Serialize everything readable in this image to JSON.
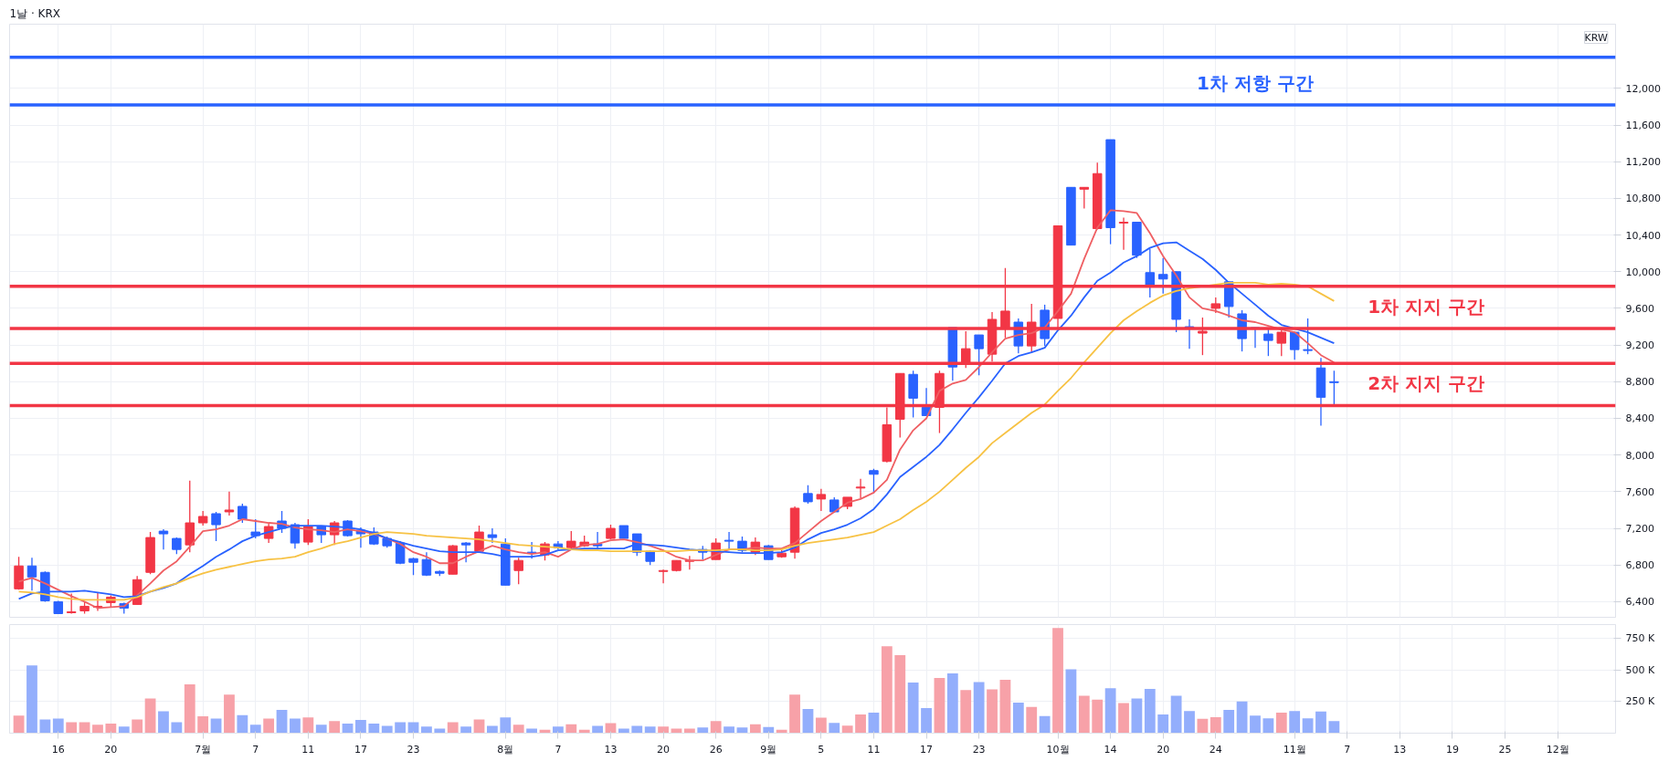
{
  "chart_data": [
    {
      "type": "candlestick",
      "title": "1날 · KRX",
      "annotations": [
        "KRW"
      ],
      "tick_labels": "y",
      "grid": true,
      "categories": [
        null,
        null,
        null,
        "16",
        null,
        null,
        null,
        "20",
        null,
        null,
        null,
        null,
        null,
        null,
        "7월",
        null,
        null,
        null,
        "7",
        null,
        null,
        null,
        "11",
        null,
        null,
        null,
        "17",
        null,
        null,
        null,
        "23",
        null,
        null,
        null,
        null,
        null,
        null,
        "8월",
        null,
        null,
        null,
        "7",
        null,
        null,
        null,
        "13",
        null,
        null,
        null,
        "20",
        null,
        null,
        null,
        "26",
        null,
        null,
        null,
        "9월",
        null,
        null,
        null,
        "5",
        null,
        null,
        null,
        "11",
        null,
        null,
        null,
        "17",
        null,
        null,
        null,
        "23",
        null,
        null,
        null,
        null,
        null,
        "10월",
        null,
        null,
        null,
        "14",
        null,
        null,
        null,
        "20",
        null,
        null,
        null,
        "24",
        null,
        null,
        null,
        null,
        null,
        "11월",
        null,
        null,
        null,
        "7",
        null,
        null,
        null,
        "13",
        null,
        null,
        null,
        "19",
        null,
        null,
        null,
        "25",
        null,
        null,
        null,
        "12월",
        null,
        null,
        null,
        null
      ],
      "ohlc": [
        [
          6540,
          6890,
          6530,
          6790
        ],
        [
          6790,
          6880,
          6520,
          6670
        ],
        [
          6720,
          6730,
          6400,
          6410
        ],
        [
          6400,
          6410,
          6270,
          6270
        ],
        [
          6280,
          6490,
          6270,
          6290
        ],
        [
          6300,
          6400,
          6270,
          6350
        ],
        [
          6340,
          6500,
          6300,
          6350
        ],
        [
          6390,
          6470,
          6340,
          6450
        ],
        [
          6380,
          6390,
          6270,
          6330
        ],
        [
          6370,
          6680,
          6370,
          6640
        ],
        [
          6720,
          7160,
          6700,
          7100
        ],
        [
          7170,
          7190,
          6970,
          7140
        ],
        [
          7090,
          7100,
          6920,
          6970
        ],
        [
          7020,
          7720,
          6940,
          7260
        ],
        [
          7260,
          7390,
          7230,
          7330
        ],
        [
          7360,
          7380,
          7060,
          7240
        ],
        [
          7380,
          7600,
          7340,
          7400
        ],
        [
          7440,
          7470,
          7260,
          7300
        ],
        [
          7160,
          7300,
          7090,
          7120
        ],
        [
          7090,
          7250,
          7040,
          7220
        ],
        [
          7280,
          7390,
          7150,
          7200
        ],
        [
          7240,
          7260,
          6980,
          7040
        ],
        [
          7050,
          7300,
          7020,
          7220
        ],
        [
          7220,
          7230,
          7040,
          7130
        ],
        [
          7130,
          7280,
          7020,
          7260
        ],
        [
          7280,
          7290,
          7110,
          7120
        ],
        [
          7180,
          7210,
          6990,
          7140
        ],
        [
          7160,
          7210,
          7020,
          7030
        ],
        [
          7090,
          7110,
          6990,
          7010
        ],
        [
          7040,
          7060,
          6810,
          6820
        ],
        [
          6870,
          6880,
          6690,
          6830
        ],
        [
          6860,
          6940,
          6680,
          6690
        ],
        [
          6730,
          6740,
          6680,
          6710
        ],
        [
          6700,
          7020,
          6700,
          7010
        ],
        [
          7040,
          7050,
          6830,
          7020
        ],
        [
          6950,
          7230,
          6940,
          7160
        ],
        [
          7130,
          7200,
          7040,
          7100
        ],
        [
          7030,
          7090,
          6580,
          6580
        ],
        [
          6740,
          6880,
          6590,
          6850
        ],
        [
          6940,
          7050,
          6870,
          6930
        ],
        [
          6910,
          7050,
          6850,
          7030
        ],
        [
          7030,
          7060,
          6970,
          6990
        ],
        [
          6990,
          7170,
          6970,
          7060
        ],
        [
          7010,
          7120,
          7000,
          7050
        ],
        [
          7030,
          7160,
          6970,
          7010
        ],
        [
          7090,
          7240,
          7080,
          7200
        ],
        [
          7230,
          7230,
          7090,
          7090
        ],
        [
          7140,
          7140,
          6900,
          6940
        ],
        [
          6950,
          6960,
          6800,
          6840
        ],
        [
          6730,
          6750,
          6600,
          6740
        ],
        [
          6740,
          6850,
          6730,
          6850
        ],
        [
          6840,
          6900,
          6750,
          6850
        ],
        [
          6970,
          7010,
          6860,
          6940
        ],
        [
          6860,
          7090,
          6860,
          7040
        ],
        [
          7070,
          7160,
          6960,
          7060
        ],
        [
          7060,
          7110,
          6940,
          6960
        ],
        [
          6940,
          7100,
          6910,
          7050
        ],
        [
          7010,
          7020,
          6860,
          6860
        ],
        [
          6890,
          6970,
          6880,
          6930
        ],
        [
          6940,
          7440,
          6870,
          7420
        ],
        [
          7580,
          7670,
          7470,
          7490
        ],
        [
          7520,
          7630,
          7390,
          7570
        ],
        [
          7510,
          7540,
          7370,
          7380
        ],
        [
          7440,
          7540,
          7410,
          7540
        ],
        [
          7640,
          7740,
          7530,
          7650
        ],
        [
          7830,
          7850,
          7580,
          7790
        ],
        [
          7930,
          8520,
          7920,
          8330
        ],
        [
          8390,
          8890,
          8190,
          8890
        ],
        [
          8880,
          8920,
          8410,
          8620
        ],
        [
          8520,
          8730,
          8430,
          8430
        ],
        [
          8520,
          8920,
          8240,
          8890
        ],
        [
          9390,
          9390,
          8810,
          8960
        ],
        [
          9010,
          9350,
          8950,
          9160
        ],
        [
          9310,
          9310,
          8870,
          9160
        ],
        [
          9100,
          9560,
          9020,
          9480
        ],
        [
          9380,
          10040,
          9280,
          9570
        ],
        [
          9450,
          9490,
          9110,
          9190
        ],
        [
          9190,
          9650,
          9120,
          9450
        ],
        [
          9580,
          9640,
          9190,
          9270
        ],
        [
          9490,
          10500,
          9380,
          10500
        ],
        [
          10920,
          10920,
          10290,
          10290
        ],
        [
          10900,
          10920,
          10690,
          10920
        ],
        [
          10470,
          11190,
          10460,
          11070
        ],
        [
          11440,
          11440,
          10300,
          10480
        ],
        [
          10530,
          10590,
          10240,
          10540
        ],
        [
          10540,
          10540,
          10150,
          10180
        ],
        [
          9990,
          10250,
          9720,
          9850
        ],
        [
          9970,
          10150,
          9760,
          9920
        ],
        [
          10000,
          10000,
          9340,
          9480
        ],
        [
          9400,
          9480,
          9160,
          9390
        ],
        [
          9330,
          9500,
          9090,
          9350
        ],
        [
          9600,
          9720,
          9550,
          9650
        ],
        [
          9890,
          9890,
          9500,
          9620
        ],
        [
          9540,
          9580,
          9130,
          9270
        ],
        [
          9390,
          9390,
          9170,
          9380
        ],
        [
          9320,
          9390,
          9080,
          9250
        ],
        [
          9220,
          9360,
          9080,
          9340
        ],
        [
          9340,
          9340,
          9040,
          9150
        ],
        [
          9150,
          9490,
          9100,
          9140
        ],
        [
          8950,
          9060,
          8320,
          8630
        ],
        [
          8800,
          8920,
          8540,
          8790
        ],
        null,
        null,
        null,
        null,
        null,
        null,
        null,
        null,
        null,
        null,
        null,
        null,
        null,
        null,
        null,
        null,
        null,
        null,
        null,
        null,
        null
      ],
      "colors": [
        "#f23645",
        "#2962ff",
        "#2962ff",
        "#2962ff",
        "#f23645",
        "#f23645",
        "#f23645",
        "#f23645",
        "#2962ff",
        "#f23645",
        "#f23645",
        "#2962ff",
        "#2962ff",
        "#f23645",
        "#f23645",
        "#2962ff",
        "#f23645",
        "#2962ff",
        "#2962ff",
        "#f23645",
        "#2962ff",
        "#2962ff",
        "#f23645",
        "#2962ff",
        "#f23645",
        "#2962ff",
        "#2962ff",
        "#2962ff",
        "#2962ff",
        "#2962ff",
        "#2962ff",
        "#2962ff",
        "#2962ff",
        "#f23645",
        "#2962ff",
        "#f23645",
        "#2962ff",
        "#2962ff",
        "#f23645",
        "#2962ff",
        "#f23645",
        "#2962ff",
        "#f23645",
        "#f23645",
        "#2962ff",
        "#f23645",
        "#2962ff",
        "#2962ff",
        "#2962ff",
        "#f23645",
        "#f23645",
        "#f23645",
        "#2962ff",
        "#f23645",
        "#2962ff",
        "#2962ff",
        "#f23645",
        "#2962ff",
        "#f23645",
        "#f23645",
        "#2962ff",
        "#f23645",
        "#2962ff",
        "#f23645",
        "#f23645",
        "#2962ff",
        "#f23645",
        "#f23645",
        "#2962ff",
        "#2962ff",
        "#f23645",
        "#2962ff",
        "#f23645",
        "#2962ff",
        "#f23645",
        "#f23645",
        "#2962ff",
        "#f23645",
        "#2962ff",
        "#f23645",
        "#2962ff",
        "#f23645",
        "#f23645",
        "#2962ff",
        "#f23645",
        "#2962ff",
        "#2962ff",
        "#2962ff",
        "#2962ff",
        "#2962ff",
        "#f23645",
        "#f23645",
        "#2962ff",
        "#2962ff",
        "#2962ff",
        "#2962ff",
        "#f23645",
        "#2962ff",
        "#2962ff",
        "#2962ff",
        "#2962ff",
        null,
        null,
        null,
        null,
        null,
        null,
        null,
        null,
        null,
        null,
        null,
        null,
        null,
        null,
        null,
        null,
        null,
        null,
        null,
        null,
        null
      ],
      "series": [
        {
          "type": "line",
          "color": "#ef5f63",
          "values": [
            6620,
            6660,
            6600,
            6530,
            6460,
            6400,
            6330,
            6340,
            6350,
            6470,
            6600,
            6740,
            6840,
            7000,
            7170,
            7190,
            7230,
            7300,
            7280,
            7260,
            7250,
            7210,
            7190,
            7180,
            7160,
            7190,
            7170,
            7140,
            7090,
            7030,
            6940,
            6890,
            6820,
            6820,
            6890,
            6950,
            7010,
            6970,
            6940,
            6920,
            6940,
            6890,
            6970,
            7020,
            7030,
            7070,
            7080,
            7050,
            7010,
            6960,
            6890,
            6850,
            6850,
            6910,
            6970,
            6970,
            6990,
            6980,
            6980,
            7040,
            7160,
            7280,
            7380,
            7480,
            7520,
            7590,
            7730,
            8060,
            8270,
            8400,
            8700,
            8780,
            8820,
            8960,
            9120,
            9270,
            9310,
            9330,
            9390,
            9570,
            9760,
            10140,
            10480,
            10670,
            10660,
            10640,
            10420,
            10170,
            9960,
            9720,
            9600,
            9570,
            9520,
            9470,
            9450,
            9410,
            9370,
            9340,
            9220,
            9090,
            9010,
            null,
            null,
            null,
            null,
            null,
            null,
            null,
            null,
            null,
            null,
            null,
            null,
            null,
            null,
            null,
            null,
            null,
            null,
            null,
            null,
            null
          ]
        },
        {
          "type": "line",
          "color": "#2962ff",
          "values": [
            6430,
            6490,
            6510,
            6510,
            6510,
            6520,
            6500,
            6480,
            6450,
            6460,
            6510,
            6550,
            6600,
            6700,
            6790,
            6890,
            6970,
            7060,
            7120,
            7160,
            7200,
            7230,
            7230,
            7230,
            7220,
            7210,
            7190,
            7150,
            7090,
            7050,
            7010,
            6980,
            6950,
            6940,
            6940,
            6940,
            6920,
            6890,
            6890,
            6890,
            6910,
            6960,
            6970,
            6980,
            6980,
            6980,
            6980,
            7030,
            7020,
            7010,
            6990,
            6970,
            6960,
            6950,
            6940,
            6930,
            6930,
            6930,
            6940,
            6990,
            7080,
            7150,
            7190,
            7240,
            7310,
            7410,
            7570,
            7760,
            7870,
            7980,
            8110,
            8280,
            8460,
            8630,
            8810,
            9000,
            9080,
            9120,
            9170,
            9360,
            9520,
            9720,
            9900,
            9990,
            10100,
            10170,
            10260,
            10310,
            10320,
            10230,
            10140,
            10020,
            9880,
            9760,
            9640,
            9520,
            9420,
            9380,
            9340,
            9280,
            9220,
            null,
            null,
            null,
            null,
            null,
            null,
            null,
            null,
            null,
            null,
            null,
            null,
            null,
            null,
            null,
            null,
            null,
            null,
            null,
            null,
            null
          ]
        },
        {
          "type": "line",
          "color": "#f7c244",
          "values": [
            6510,
            6500,
            6480,
            6450,
            6430,
            6420,
            6420,
            6420,
            6420,
            6450,
            6510,
            6560,
            6600,
            6660,
            6710,
            6750,
            6780,
            6810,
            6840,
            6860,
            6870,
            6890,
            6940,
            6980,
            7030,
            7060,
            7100,
            7140,
            7160,
            7150,
            7140,
            7120,
            7110,
            7100,
            7090,
            7080,
            7060,
            7040,
            7020,
            7010,
            7000,
            6990,
            6970,
            6960,
            6960,
            6950,
            6950,
            6950,
            6950,
            6950,
            6950,
            6960,
            6960,
            6960,
            6970,
            6970,
            6960,
            6960,
            6970,
            7010,
            7040,
            7060,
            7080,
            7100,
            7130,
            7160,
            7230,
            7300,
            7400,
            7490,
            7600,
            7730,
            7860,
            7980,
            8130,
            8240,
            8350,
            8460,
            8550,
            8700,
            8840,
            9010,
            9170,
            9330,
            9470,
            9570,
            9660,
            9740,
            9790,
            9820,
            9840,
            9860,
            9880,
            9880,
            9880,
            9860,
            9870,
            9860,
            9840,
            9760,
            9680,
            null,
            null,
            null,
            null,
            null,
            null,
            null,
            null,
            null,
            null,
            null,
            null,
            null,
            null,
            null,
            null,
            null,
            null,
            null,
            null,
            null
          ]
        }
      ],
      "ylim": [
        6230,
        12700
      ],
      "yticks": [
        {
          "value": 6400,
          "label": "6,400"
        },
        {
          "value": 6800,
          "label": "6,800"
        },
        {
          "value": 7200,
          "label": "7,200"
        },
        {
          "value": 7600,
          "label": "7,600"
        },
        {
          "value": 8000,
          "label": "8,000"
        },
        {
          "value": 8400,
          "label": "8,400"
        },
        {
          "value": 8800,
          "label": "8,800"
        },
        {
          "value": 9200,
          "label": "9,200"
        },
        {
          "value": 9600,
          "label": "9,600"
        },
        {
          "value": 10000,
          "label": "10,000"
        },
        {
          "value": 10400,
          "label": "10,400"
        },
        {
          "value": 10800,
          "label": "10,800"
        },
        {
          "value": 11200,
          "label": "11,200"
        },
        {
          "value": 11600,
          "label": "11,600"
        },
        {
          "value": 12000,
          "label": "12,000"
        }
      ],
      "ref_lines": [
        {
          "axis": "y",
          "value": 12340,
          "color": "#2962ff"
        },
        {
          "axis": "y",
          "value": 11820,
          "label": "1차 저항 구간",
          "color": "#2962ff"
        },
        {
          "axis": "y",
          "value": 9840,
          "color": "#f23645"
        },
        {
          "axis": "y",
          "value": 9380,
          "label": "1차 지지 구간",
          "color": "#f23645"
        },
        {
          "axis": "y",
          "value": 9000,
          "color": "#f23645"
        },
        {
          "axis": "y",
          "value": 8540,
          "label": "2차 지지 구간",
          "color": "#f23645"
        }
      ]
    },
    {
      "type": "bar",
      "grid": true,
      "values": [
        139,
        537,
        108,
        116,
        87,
        87,
        66,
        75,
        53,
        108,
        275,
        173,
        87,
        387,
        134,
        116,
        305,
        143,
        66,
        116,
        185,
        116,
        125,
        66,
        96,
        75,
        104,
        75,
        57,
        87,
        87,
        53,
        36,
        87,
        53,
        108,
        57,
        125,
        66,
        36,
        27,
        53,
        70,
        27,
        57,
        79,
        36,
        57,
        53,
        53,
        36,
        36,
        45,
        96,
        53,
        45,
        70,
        49,
        27,
        305,
        192,
        122,
        81,
        59,
        149,
        162,
        689,
        617,
        401,
        198,
        437,
        473,
        342,
        405,
        347,
        423,
        243,
        207,
        135,
        833,
        505,
        297,
        266,
        356,
        239,
        275,
        351,
        149,
        297,
        176,
        113,
        126,
        185,
        252,
        140,
        117,
        162,
        176,
        117,
        171,
        95,
        null,
        null,
        null,
        null,
        null,
        null,
        null,
        null,
        null,
        null,
        null,
        null,
        null,
        null,
        null,
        null,
        null,
        null,
        null,
        null,
        null
      ],
      "colors": [
        "#f7a1a8",
        "#93aefc",
        "#93aefc",
        "#93aefc",
        "#f7a1a8",
        "#f7a1a8",
        "#f7a1a8",
        "#f7a1a8",
        "#93aefc",
        "#f7a1a8",
        "#f7a1a8",
        "#93aefc",
        "#93aefc",
        "#f7a1a8",
        "#f7a1a8",
        "#93aefc",
        "#f7a1a8",
        "#93aefc",
        "#93aefc",
        "#f7a1a8",
        "#93aefc",
        "#93aefc",
        "#f7a1a8",
        "#93aefc",
        "#f7a1a8",
        "#93aefc",
        "#93aefc",
        "#93aefc",
        "#93aefc",
        "#93aefc",
        "#93aefc",
        "#93aefc",
        "#93aefc",
        "#f7a1a8",
        "#93aefc",
        "#f7a1a8",
        "#93aefc",
        "#93aefc",
        "#f7a1a8",
        "#93aefc",
        "#f7a1a8",
        "#93aefc",
        "#f7a1a8",
        "#f7a1a8",
        "#93aefc",
        "#f7a1a8",
        "#93aefc",
        "#93aefc",
        "#93aefc",
        "#f7a1a8",
        "#f7a1a8",
        "#f7a1a8",
        "#93aefc",
        "#f7a1a8",
        "#93aefc",
        "#93aefc",
        "#f7a1a8",
        "#93aefc",
        "#f7a1a8",
        "#f7a1a8",
        "#93aefc",
        "#f7a1a8",
        "#93aefc",
        "#f7a1a8",
        "#f7a1a8",
        "#93aefc",
        "#f7a1a8",
        "#f7a1a8",
        "#93aefc",
        "#93aefc",
        "#f7a1a8",
        "#93aefc",
        "#f7a1a8",
        "#93aefc",
        "#f7a1a8",
        "#f7a1a8",
        "#93aefc",
        "#f7a1a8",
        "#93aefc",
        "#f7a1a8",
        "#93aefc",
        "#f7a1a8",
        "#f7a1a8",
        "#93aefc",
        "#f7a1a8",
        "#93aefc",
        "#93aefc",
        "#93aefc",
        "#93aefc",
        "#93aefc",
        "#f7a1a8",
        "#f7a1a8",
        "#93aefc",
        "#93aefc",
        "#93aefc",
        "#93aefc",
        "#f7a1a8",
        "#93aefc",
        "#93aefc",
        "#93aefc",
        "#93aefc",
        null,
        null,
        null,
        null,
        null,
        null,
        null,
        null,
        null,
        null,
        null,
        null,
        null,
        null,
        null,
        null,
        null,
        null,
        null,
        null,
        null
      ],
      "ylim": [
        0,
        860
      ],
      "yticks": [
        {
          "value": 250,
          "label": "250 K"
        },
        {
          "value": 500,
          "label": "500 K"
        },
        {
          "value": 750,
          "label": "750 K"
        }
      ]
    }
  ]
}
